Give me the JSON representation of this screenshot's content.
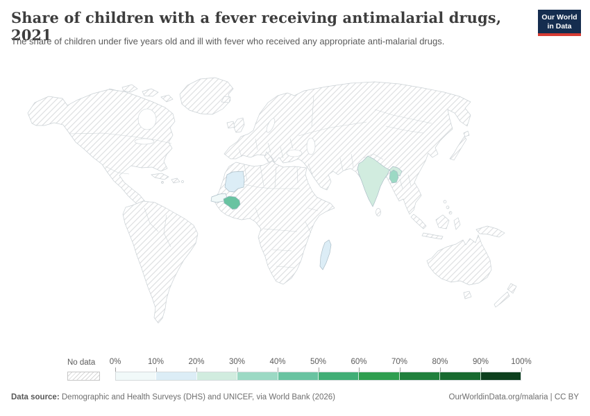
{
  "header": {
    "title": "Share of children with a fever receiving antimalarial drugs, 2021",
    "subtitle": "The share of children under five years old and ill with fever who received any appropriate anti-malarial drugs.",
    "logo": {
      "line1": "Our World",
      "line2": "in Data",
      "bg_color": "#152d4f",
      "accent_color": "#d73c34"
    }
  },
  "chart_data": {
    "type": "choropleth_map",
    "title": "Share of children with a fever receiving antimalarial drugs, 2021",
    "unit": "%",
    "year": "2021",
    "legend": {
      "no_data_label": "No data",
      "tick_labels": [
        "0%",
        "10%",
        "20%",
        "30%",
        "40%",
        "50%",
        "60%",
        "70%",
        "80%",
        "90%",
        "100%"
      ],
      "bin_colors": [
        "#f1f9f9",
        "#dcedf6",
        "#d1ecdf",
        "#9cd9c4",
        "#69c3a1",
        "#41ae76",
        "#2f9e50",
        "#20803d",
        "#186a30",
        "#0d401e"
      ],
      "no_data_pattern": "diagonal-hatch"
    },
    "countries_with_data": [
      {
        "country": "Senegal",
        "value_bin": "0-10%",
        "color_bin_index": 0
      },
      {
        "country": "Mauritania",
        "value_bin": "10-20%",
        "color_bin_index": 1
      },
      {
        "country": "Madagascar",
        "value_bin": "10-20%",
        "color_bin_index": 1
      },
      {
        "country": "India",
        "value_bin": "20-30%",
        "color_bin_index": 2
      },
      {
        "country": "Bangladesh",
        "value_bin": "30-40%",
        "color_bin_index": 3
      },
      {
        "country": "Guinea",
        "value_bin": "40-50%",
        "color_bin_index": 4
      }
    ],
    "other_countries": "No data"
  },
  "footer": {
    "source_label": "Data source:",
    "source_text": " Demographic and Health Surveys (DHS) and UNICEF, via World Bank (2026)",
    "rights_text": "OurWorldinData.org/malaria | CC BY"
  }
}
